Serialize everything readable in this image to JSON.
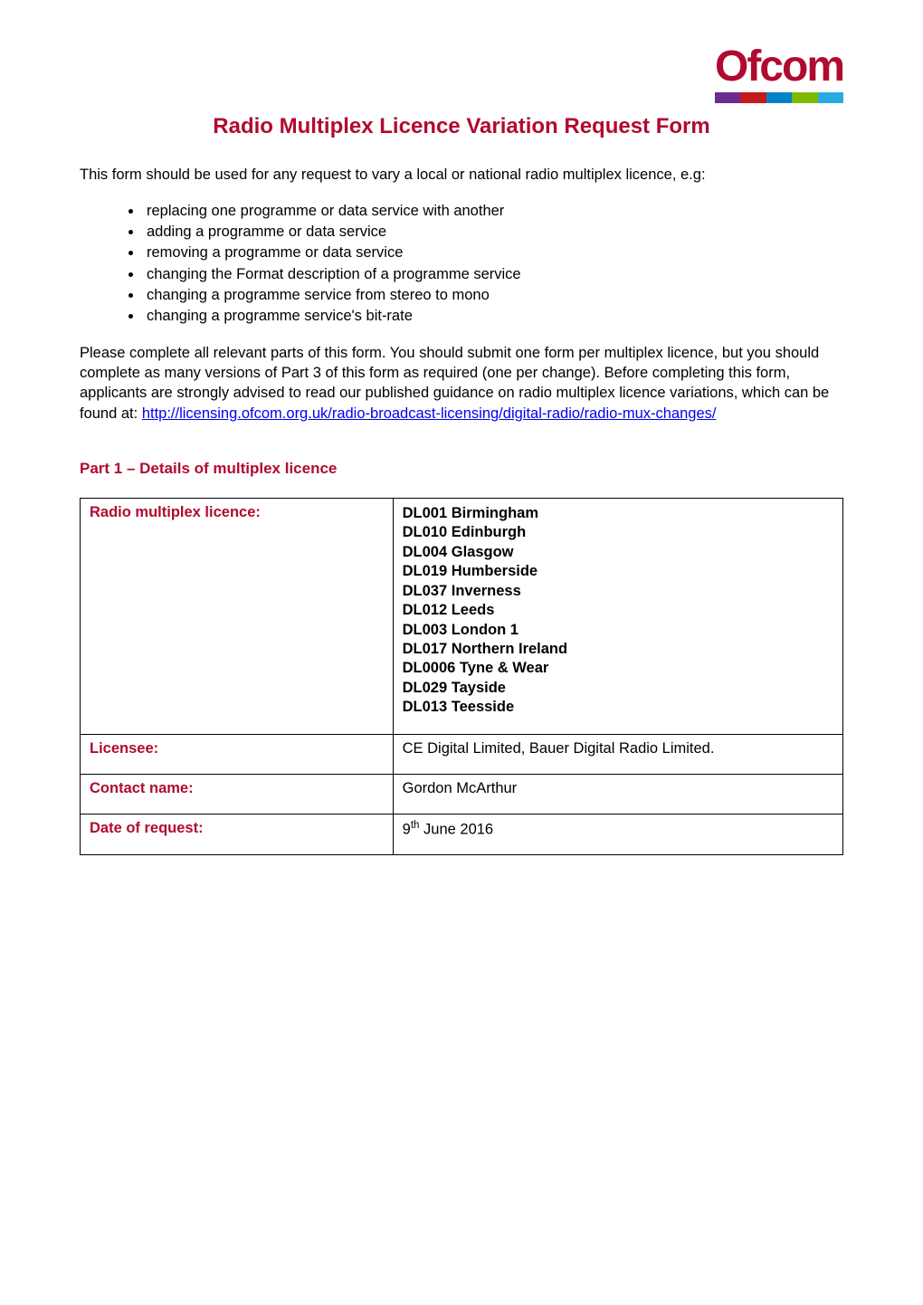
{
  "logo": {
    "text": "Ofcom",
    "bar_colors": [
      "#6a2c91",
      "#c41a1a",
      "#0082c8",
      "#7fba00",
      "#29abe2"
    ]
  },
  "title": "Radio Multiplex Licence Variation Request Form",
  "intro": "This form should be used for any request to vary a local or national radio multiplex licence, e.g:",
  "change_examples": [
    "replacing one programme or data service with another",
    "adding a programme or data service",
    "removing a programme or data service",
    "changing the Format description of a programme service",
    "changing a programme service from stereo to mono",
    "changing a programme service's bit-rate"
  ],
  "para2_before_link": "Please complete all relevant parts of this form.  You should submit one form per multiplex licence, but you should complete as many versions of Part 3 of this form as required (one per change).  Before completing this form, applicants are strongly advised to read our published guidance on radio multiplex licence variations, which can be found at: ",
  "link_text": "http://licensing.ofcom.org.uk/radio-broadcast-licensing/digital-radio/radio-mux-changes/",
  "section_heading": "Part 1 – Details of multiplex licence",
  "table": {
    "rows": {
      "multiplex": {
        "label": "Radio multiplex licence:",
        "licences": [
          "DL001 Birmingham",
          "DL010 Edinburgh",
          "DL004 Glasgow",
          "DL019 Humberside",
          "DL037 Inverness",
          "DL012 Leeds",
          "DL003 London 1",
          "DL017 Northern Ireland",
          "DL0006 Tyne & Wear",
          "DL029 Tayside",
          "DL013 Teesside"
        ]
      },
      "licensee": {
        "label": "Licensee:",
        "value": "CE Digital Limited, Bauer Digital Radio Limited."
      },
      "contact": {
        "label": "Contact name:",
        "value": "Gordon McArthur"
      },
      "date": {
        "label": "Date of request:",
        "day": "9",
        "suffix": "th",
        "rest": " June 2016"
      }
    }
  },
  "colors": {
    "brand": "#b10a31",
    "text": "#000000",
    "link": "#0000ee",
    "background": "#ffffff",
    "border": "#000000"
  }
}
